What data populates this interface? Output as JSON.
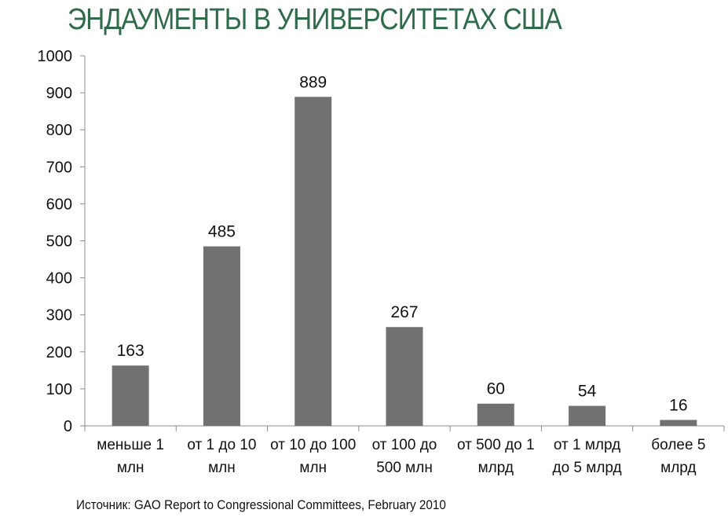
{
  "chart_data": {
    "type": "bar",
    "title": "ЭНДАУМЕНТЫ В УНИВЕРСИТЕТАХ США",
    "categories": [
      [
        "меньше 1",
        "млн"
      ],
      [
        "от 1 до 10",
        "млн"
      ],
      [
        "от 10 до 100",
        "млн"
      ],
      [
        "от 100 до",
        "500 млн"
      ],
      [
        "от 500 до 1",
        "млрд"
      ],
      [
        "от 1 млрд",
        "до 5 млрд"
      ],
      [
        "более 5",
        "млрд"
      ]
    ],
    "values": [
      163,
      485,
      889,
      267,
      60,
      54,
      16
    ],
    "data_labels": [
      "163",
      "485",
      "889",
      "267",
      "60",
      "54",
      "16"
    ],
    "ylim": [
      0,
      1000
    ],
    "yticks": [
      "0",
      "100",
      "200",
      "300",
      "400",
      "500",
      "600",
      "700",
      "800",
      "900",
      "1000"
    ],
    "xlabel": "",
    "ylabel": "",
    "grid": false,
    "bar_color": "#717171",
    "title_color": "#2e6b4a"
  },
  "source": "Источник: GAO Report to Congressional Committees, February 2010"
}
